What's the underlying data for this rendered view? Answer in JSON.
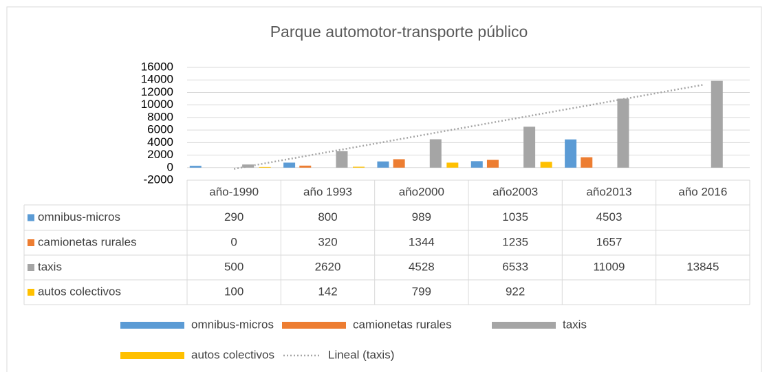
{
  "chart_data": {
    "type": "bar",
    "title": "Parque automotor-transporte público",
    "categories": [
      "año-1990",
      "año 1993",
      "año2000",
      "año2003",
      "año2013",
      "año 2016"
    ],
    "series": [
      {
        "name": "omnibus-micros",
        "color": "#5b9bd5",
        "values": [
          290,
          800,
          989,
          1035,
          4503,
          null
        ]
      },
      {
        "name": "camionetas rurales",
        "color": "#ed7d31",
        "values": [
          0,
          320,
          1344,
          1235,
          1657,
          null
        ]
      },
      {
        "name": "taxis",
        "color": "#a5a5a5",
        "values": [
          500,
          2620,
          4528,
          6533,
          11009,
          13845
        ]
      },
      {
        "name": "autos colectivos",
        "color": "#ffc000",
        "values": [
          100,
          142,
          799,
          922,
          null,
          null
        ]
      }
    ],
    "trendline": {
      "series": 2,
      "kind": "linear",
      "name": "Lineal (taxis)",
      "color": "#a5a5a5"
    },
    "ylim": [
      -2000,
      16000
    ],
    "yticks": [
      -2000,
      0,
      2000,
      4000,
      6000,
      8000,
      10000,
      12000,
      14000,
      16000
    ],
    "grid": true,
    "data_table": true,
    "legend": "bottom"
  }
}
